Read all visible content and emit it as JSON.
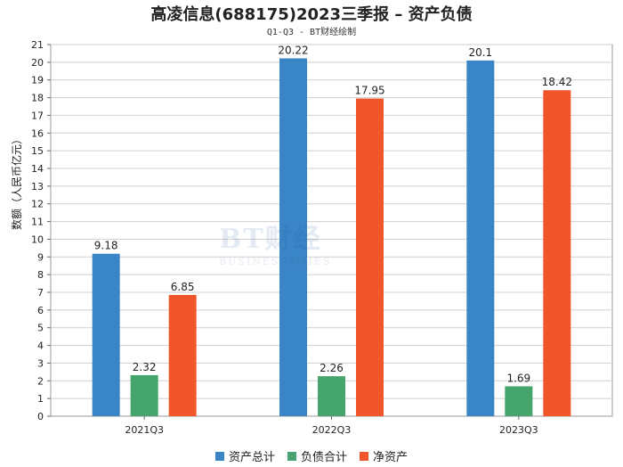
{
  "chart_data": {
    "type": "bar",
    "title": "高凌信息(688175)2023三季报 – 资产负债",
    "subtitle": "Q1-Q3 - BT财经绘制",
    "ylabel": "数额（人民币亿元）",
    "xlabel": "",
    "categories": [
      "2021Q3",
      "2022Q3",
      "2023Q3"
    ],
    "series": [
      {
        "name": "资产总计",
        "color": "#3a85c6",
        "values": [
          9.18,
          20.22,
          20.1
        ]
      },
      {
        "name": "负债合计",
        "color": "#45a56c",
        "values": [
          2.32,
          2.26,
          1.69
        ]
      },
      {
        "name": "净资产",
        "color": "#f0552b",
        "values": [
          6.85,
          17.95,
          18.42
        ]
      }
    ],
    "ylim": [
      0,
      21
    ],
    "yticks": [
      0,
      1,
      2,
      3,
      4,
      5,
      6,
      7,
      8,
      9,
      10,
      11,
      12,
      13,
      14,
      15,
      16,
      17,
      18,
      19,
      20,
      21
    ],
    "grid": true,
    "legend_position": "bottom"
  },
  "watermark": {
    "main": "BT财经",
    "sub": "BUSINESSTIMES"
  }
}
